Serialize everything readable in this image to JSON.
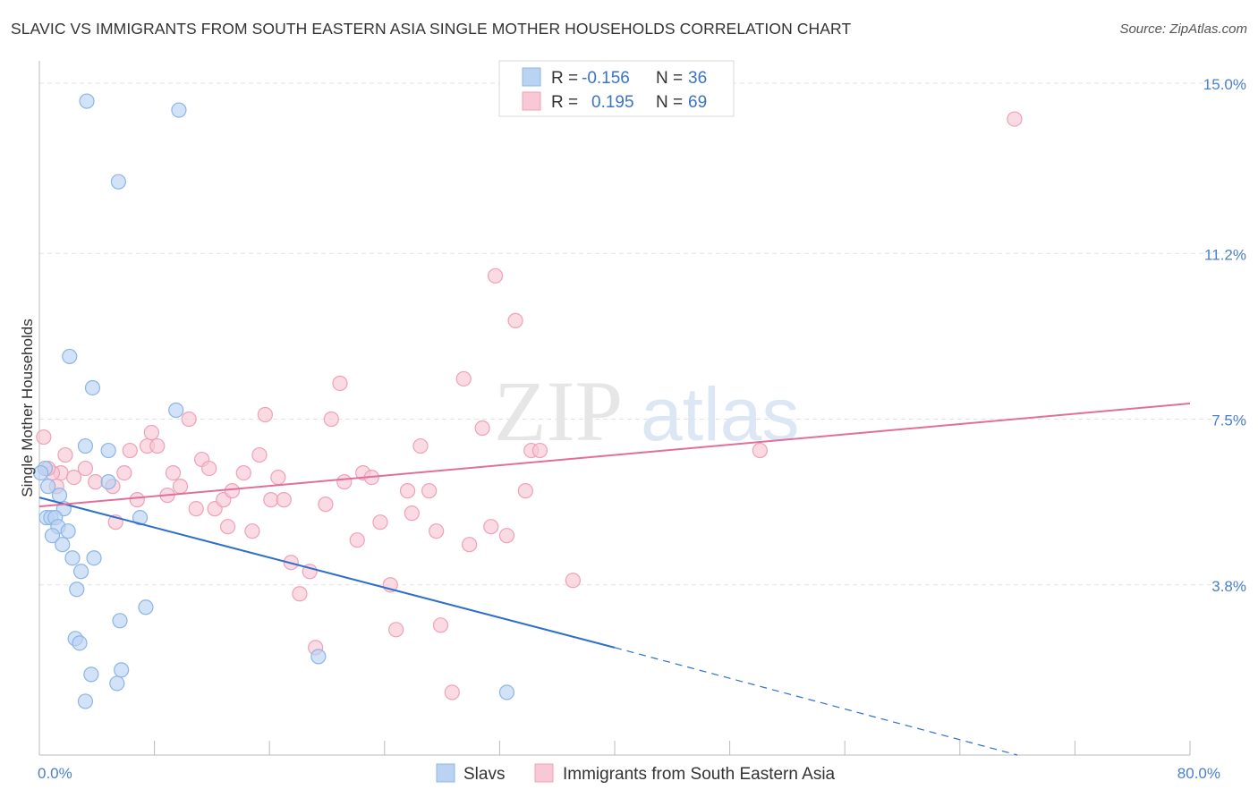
{
  "title": "SLAVIC VS IMMIGRANTS FROM SOUTH EASTERN ASIA SINGLE MOTHER HOUSEHOLDS CORRELATION CHART",
  "source": "Source: ZipAtlas.com",
  "watermark": {
    "part1": "ZIP",
    "part2": "atlas"
  },
  "chart_data": {
    "type": "scatter",
    "xlabel": "",
    "ylabel": "Single Mother Households",
    "xlim": [
      0,
      80
    ],
    "ylim": [
      0,
      15.5
    ],
    "x_tick_labels": [
      {
        "value": 0,
        "label": "0.0%"
      },
      {
        "value": 80,
        "label": "80.0%"
      }
    ],
    "y_tick_labels": [
      {
        "value": 3.8,
        "label": "3.8%"
      },
      {
        "value": 7.5,
        "label": "7.5%"
      },
      {
        "value": 11.2,
        "label": "11.2%"
      },
      {
        "value": 15.0,
        "label": "15.0%"
      }
    ],
    "legend": [
      {
        "r_label": "R =",
        "r_value": "-0.156",
        "n_label": "N =",
        "n_value": "36"
      },
      {
        "r_label": "R =",
        "r_value": "0.195",
        "n_label": "N =",
        "n_value": "69"
      }
    ],
    "series": [
      {
        "name": "Slavs",
        "color": "#8db4e8",
        "fill": "#bad3f3",
        "line_color": "#2f6fcc",
        "trend": {
          "x0": 0,
          "y0": 5.75,
          "x1": 40,
          "y1": 2.4,
          "dash_to_x": 68,
          "dash_to_y": 0.0
        },
        "points": [
          [
            3.3,
            14.6
          ],
          [
            9.7,
            14.4
          ],
          [
            5.5,
            12.8
          ],
          [
            2.1,
            8.9
          ],
          [
            3.7,
            8.2
          ],
          [
            9.5,
            7.7
          ],
          [
            3.2,
            6.9
          ],
          [
            4.8,
            6.8
          ],
          [
            0.4,
            6.4
          ],
          [
            4.8,
            6.1
          ],
          [
            1.4,
            5.8
          ],
          [
            1.7,
            5.5
          ],
          [
            0.5,
            5.3
          ],
          [
            0.8,
            5.3
          ],
          [
            1.1,
            5.3
          ],
          [
            7.0,
            5.3
          ],
          [
            1.3,
            5.1
          ],
          [
            2.0,
            5.0
          ],
          [
            0.9,
            4.9
          ],
          [
            1.6,
            4.7
          ],
          [
            2.3,
            4.4
          ],
          [
            3.8,
            4.4
          ],
          [
            2.9,
            4.1
          ],
          [
            2.6,
            3.7
          ],
          [
            7.4,
            3.3
          ],
          [
            5.6,
            3.0
          ],
          [
            2.5,
            2.6
          ],
          [
            2.8,
            2.5
          ],
          [
            19.4,
            2.2
          ],
          [
            5.7,
            1.9
          ],
          [
            3.6,
            1.8
          ],
          [
            5.4,
            1.6
          ],
          [
            3.2,
            1.2
          ],
          [
            32.5,
            1.4
          ],
          [
            0.1,
            6.3
          ],
          [
            0.6,
            6.0
          ]
        ]
      },
      {
        "name": "Immigrants from South Eastern Asia",
        "color": "#f0a0b8",
        "fill": "#f8c8d6",
        "line_color": "#e0709a",
        "trend": {
          "x0": 0,
          "y0": 5.55,
          "x1": 80,
          "y1": 7.85
        },
        "points": [
          [
            0.3,
            7.1
          ],
          [
            1.8,
            6.7
          ],
          [
            1.5,
            6.3
          ],
          [
            0.9,
            6.3
          ],
          [
            3.2,
            6.4
          ],
          [
            3.9,
            6.1
          ],
          [
            5.1,
            6.0
          ],
          [
            5.9,
            6.3
          ],
          [
            6.3,
            6.8
          ],
          [
            7.5,
            6.9
          ],
          [
            7.8,
            7.2
          ],
          [
            8.2,
            6.9
          ],
          [
            6.8,
            5.7
          ],
          [
            8.9,
            5.8
          ],
          [
            9.3,
            6.3
          ],
          [
            9.8,
            6.0
          ],
          [
            10.4,
            7.5
          ],
          [
            10.9,
            5.5
          ],
          [
            11.3,
            6.6
          ],
          [
            11.8,
            6.4
          ],
          [
            12.2,
            5.5
          ],
          [
            12.8,
            5.7
          ],
          [
            13.4,
            5.9
          ],
          [
            13.1,
            5.1
          ],
          [
            14.2,
            6.3
          ],
          [
            14.8,
            5.0
          ],
          [
            15.3,
            6.7
          ],
          [
            15.7,
            7.6
          ],
          [
            16.1,
            5.7
          ],
          [
            16.6,
            6.2
          ],
          [
            17.0,
            5.7
          ],
          [
            17.5,
            4.3
          ],
          [
            18.1,
            3.6
          ],
          [
            18.8,
            4.1
          ],
          [
            19.2,
            2.4
          ],
          [
            19.9,
            5.6
          ],
          [
            20.3,
            7.5
          ],
          [
            20.9,
            8.3
          ],
          [
            21.2,
            6.1
          ],
          [
            22.1,
            4.8
          ],
          [
            22.5,
            6.3
          ],
          [
            23.1,
            6.2
          ],
          [
            23.7,
            5.2
          ],
          [
            24.4,
            3.8
          ],
          [
            24.8,
            2.8
          ],
          [
            25.6,
            5.9
          ],
          [
            25.9,
            5.4
          ],
          [
            26.5,
            6.9
          ],
          [
            27.1,
            5.9
          ],
          [
            27.6,
            5.0
          ],
          [
            27.9,
            2.9
          ],
          [
            28.7,
            1.4
          ],
          [
            29.5,
            8.4
          ],
          [
            29.9,
            4.7
          ],
          [
            30.8,
            7.3
          ],
          [
            31.4,
            5.1
          ],
          [
            31.7,
            10.7
          ],
          [
            32.5,
            4.9
          ],
          [
            33.1,
            9.7
          ],
          [
            33.8,
            5.9
          ],
          [
            34.2,
            6.8
          ],
          [
            34.8,
            6.8
          ],
          [
            37.1,
            3.9
          ],
          [
            50.1,
            6.8
          ],
          [
            67.8,
            14.2
          ],
          [
            1.2,
            6.0
          ],
          [
            2.4,
            6.2
          ],
          [
            5.3,
            5.2
          ],
          [
            0.6,
            6.4
          ]
        ]
      }
    ]
  },
  "bottom_legend": [
    {
      "label": "Slavs"
    },
    {
      "label": "Immigrants from South Eastern Asia"
    }
  ]
}
